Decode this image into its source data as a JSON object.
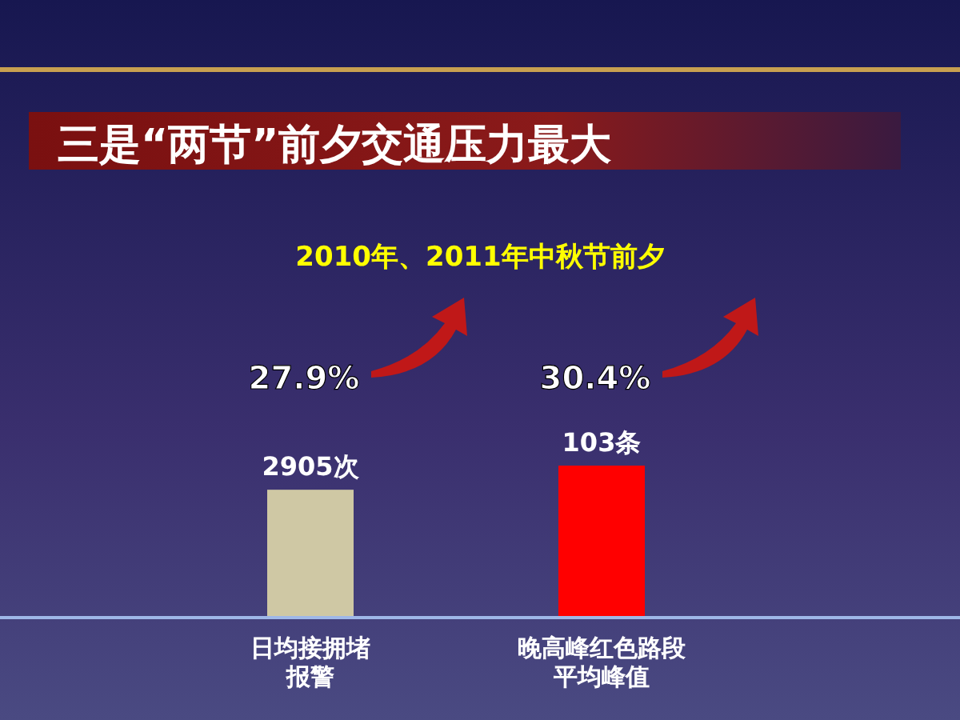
{
  "chart_data": {
    "type": "bar",
    "title": "三是“两节”前夕交通压力最大",
    "subtitle": "2010年、2011年中秋节前夕",
    "categories": [
      "日均接拥堵报警",
      "晚高峰红色路段平均峰值"
    ],
    "ylim": [
      0,
      3460
    ],
    "y2lim": [
      0,
      103
    ],
    "tick_labels": false,
    "series": [
      {
        "color": "#cfc8a4",
        "values": [
          2905,
          null
        ],
        "value_labels": [
          "2905次",
          null
        ]
      },
      {
        "color": "#ff0000",
        "values": [
          null,
          103
        ],
        "value_labels": [
          null,
          "103条"
        ],
        "axis": "y2"
      }
    ],
    "annotations": [
      "27.9%",
      "30.4%"
    ]
  }
}
